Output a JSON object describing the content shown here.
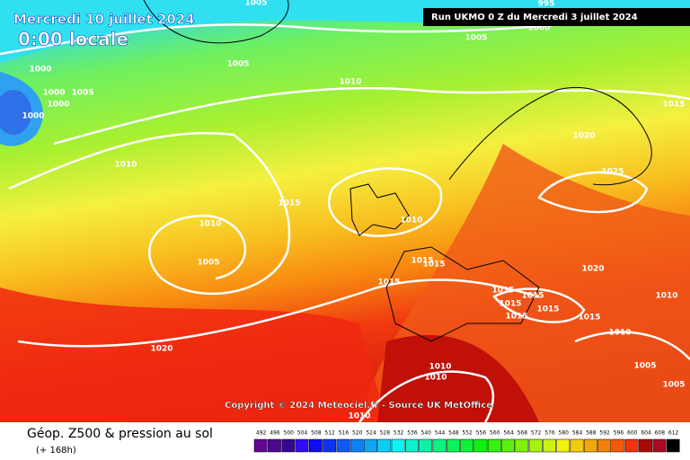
{
  "header": {
    "date": "Mercredi 10 juillet 2024",
    "time": "0:00 locale",
    "run": "Run UKMO 0 Z du Mercredi 3 juillet 2024"
  },
  "copyright": "Copyright © 2024 Meteociel.fr - Source UK MetOffice",
  "footer": {
    "title": "Géop. Z500 & pression au sol",
    "subtitle": "(+ 168h)"
  },
  "legend": {
    "ticks": [
      492,
      496,
      500,
      504,
      508,
      512,
      516,
      520,
      524,
      528,
      532,
      536,
      540,
      544,
      548,
      552,
      556,
      560,
      564,
      568,
      572,
      576,
      580,
      584,
      588,
      592,
      596,
      600,
      604,
      608,
      612
    ]
  },
  "isobar_labels": [
    "1005",
    "995",
    "1000",
    "1005",
    "1000",
    "1005",
    "1000",
    "1005",
    "1000",
    "1000",
    "1010",
    "1015",
    "1020",
    "1010",
    "1025",
    "1015",
    "1010",
    "1010",
    "1005",
    "1015",
    "1015",
    "1020",
    "1015",
    "1015",
    "1015",
    "1010",
    "1015",
    "1015",
    "1015",
    "1015",
    "1010",
    "1020",
    "1010",
    "1010",
    "1005",
    "1005",
    "1010"
  ]
}
